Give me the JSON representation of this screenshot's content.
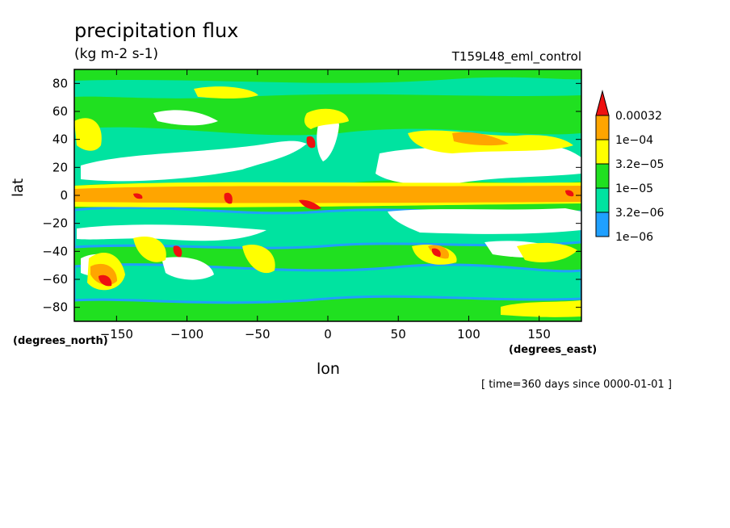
{
  "chart_data": {
    "type": "heatmap",
    "title": "precipitation flux",
    "subtitle": "(kg m-2 s-1)",
    "run_label": "T159L48_eml_control",
    "xlabel": "lon",
    "ylabel": "lat",
    "x_units": "(degrees_east)",
    "y_units": "(degrees_north)",
    "footer": "[ time=360 days since 0000-01-01 ]",
    "xlim": [
      -180,
      180
    ],
    "ylim": [
      -90,
      90
    ],
    "x_ticks": [
      -150,
      -100,
      -50,
      0,
      50,
      100,
      150
    ],
    "y_ticks": [
      80,
      60,
      40,
      20,
      0,
      -20,
      -40,
      -60,
      -80
    ],
    "grid": false,
    "legend_position": "right",
    "colorbar": {
      "labels": [
        "0.00032",
        "1e-04",
        "3.2e-05",
        "1e-05",
        "3.2e-06",
        "1e-06"
      ],
      "levels": [
        {
          "from": "1e-06",
          "to": "3.2e-06",
          "color": "#1fa0ff"
        },
        {
          "from": "3.2e-06",
          "to": "1e-05",
          "color": "#00e3a0"
        },
        {
          "from": "1e-05",
          "to": "3.2e-05",
          "color": "#20e020"
        },
        {
          "from": "3.2e-05",
          "to": "1e-04",
          "color": "#ffff00"
        },
        {
          "from": "1e-04",
          "to": "0.00032",
          "color": "#ffa500"
        },
        {
          "from": "0.00032",
          "to": "max",
          "color": "#ee1010"
        }
      ]
    },
    "colors": {
      "background_green": "#20e020",
      "teal": "#00e3a0",
      "blue": "#1fa0ff",
      "yellow": "#ffff00",
      "orange": "#ffa500",
      "red": "#ee1010",
      "dry": "#ffffff"
    }
  }
}
